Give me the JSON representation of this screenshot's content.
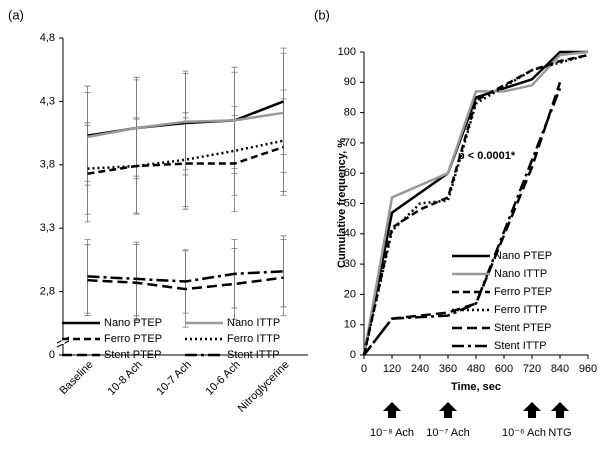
{
  "chart_data": [
    {
      "type": "line",
      "panel_label": "(a)",
      "categories": [
        "Baseline",
        "10-8 Ach",
        "10-7 Ach",
        "10-6 Ach",
        "Nitroglycerine"
      ],
      "ylim": [
        0,
        4.8
      ],
      "axis_break": [
        0,
        2.3
      ],
      "yticks": [
        0,
        {
          "value": 2.8,
          "label": "2,8"
        },
        {
          "value": 3.3,
          "label": "3,3"
        },
        {
          "value": 3.8,
          "label": "3,8"
        },
        {
          "value": 4.3,
          "label": "4,3"
        },
        {
          "value": 4.8,
          "label": "4,8"
        }
      ],
      "series": [
        {
          "name": "Nano PTEP",
          "color": "#000000",
          "dash": "none",
          "values": [
            4.03,
            4.09,
            4.13,
            4.15,
            4.3
          ],
          "errors": [
            0.39,
            0.4,
            0.41,
            0.42,
            0.42
          ]
        },
        {
          "name": "Nano ITTP",
          "color": "#999999",
          "dash": "none",
          "values": [
            4.02,
            4.09,
            4.14,
            4.15,
            4.21
          ],
          "errors": [
            0.35,
            0.38,
            0.38,
            0.38,
            0.47
          ]
        },
        {
          "name": "Ferro PTEP",
          "color": "#000000",
          "dash": "7 4",
          "values": [
            3.73,
            3.79,
            3.81,
            3.81,
            3.94
          ],
          "errors": [
            0.38,
            0.38,
            0.36,
            0.38,
            0.38
          ]
        },
        {
          "name": "Ferro ITTP",
          "color": "#000000",
          "dash": "2 3",
          "values": [
            3.77,
            3.79,
            3.84,
            3.91,
            3.99
          ],
          "errors": [
            0.36,
            0.37,
            0.37,
            0.35,
            0.4
          ]
        },
        {
          "name": "Stent PTEP",
          "color": "#000000",
          "dash": "10 5",
          "values": [
            2.89,
            2.87,
            2.82,
            2.86,
            2.91
          ],
          "errors": [
            0.28,
            0.3,
            0.3,
            0.28,
            0.3
          ]
        },
        {
          "name": "Stent ITTP",
          "color": "#000000",
          "dash": "12 4 3 4",
          "values": [
            2.92,
            2.9,
            2.88,
            2.94,
            2.96
          ],
          "errors": [
            0.29,
            0.29,
            0.25,
            0.27,
            0.28
          ]
        }
      ]
    },
    {
      "type": "line",
      "panel_label": "(b)",
      "x_label": "Time, sec",
      "y_label": "Cumulative frequency, %",
      "xlim": [
        0,
        960
      ],
      "xticks": [
        0,
        120,
        240,
        360,
        480,
        600,
        720,
        840,
        960
      ],
      "ylim": [
        0,
        100
      ],
      "yticks": [
        0,
        10,
        20,
        30,
        40,
        50,
        60,
        70,
        80,
        90,
        100
      ],
      "annotation": "p < 0.0001*",
      "arrows": [
        {
          "x": 120,
          "label": "10⁻⁸ Ach"
        },
        {
          "x": 360,
          "label": "10⁻⁷ Ach"
        },
        {
          "x": 720,
          "label": "10⁻⁶ Ach"
        },
        {
          "x": 840,
          "label": "NTG"
        }
      ],
      "series": [
        {
          "name": "Nano PTEP",
          "color": "#000000",
          "dash": "none",
          "x": [
            0,
            120,
            360,
            480,
            720,
            840,
            960
          ],
          "values": [
            0,
            47,
            60,
            85,
            91,
            100,
            100
          ]
        },
        {
          "name": "Nano ITTP",
          "color": "#999999",
          "dash": "none",
          "x": [
            0,
            120,
            360,
            480,
            600,
            720,
            840,
            960
          ],
          "values": [
            0,
            52,
            60,
            87,
            87,
            89,
            99,
            100
          ]
        },
        {
          "name": "Ferro PTEP",
          "color": "#000000",
          "dash": "7 4",
          "x": [
            0,
            120,
            240,
            360,
            480,
            720,
            840,
            960
          ],
          "values": [
            0,
            42,
            48,
            52,
            84,
            94,
            97,
            99
          ]
        },
        {
          "name": "Ferro ITTP",
          "color": "#000000",
          "dash": "2 3",
          "x": [
            0,
            120,
            240,
            360,
            480,
            720,
            960
          ],
          "values": [
            0,
            41,
            50,
            51,
            83,
            94,
            99
          ]
        },
        {
          "name": "Stent PTEP",
          "color": "#000000",
          "dash": "10 5",
          "x": [
            0,
            120,
            240,
            360,
            480,
            720,
            840
          ],
          "values": [
            0,
            12,
            13,
            14,
            17,
            62,
            90
          ]
        },
        {
          "name": "Stent ITTP",
          "color": "#000000",
          "dash": "12 4 3 4",
          "x": [
            0,
            120,
            360,
            480,
            840
          ],
          "values": [
            0,
            12,
            13,
            17,
            88
          ]
        }
      ]
    }
  ]
}
